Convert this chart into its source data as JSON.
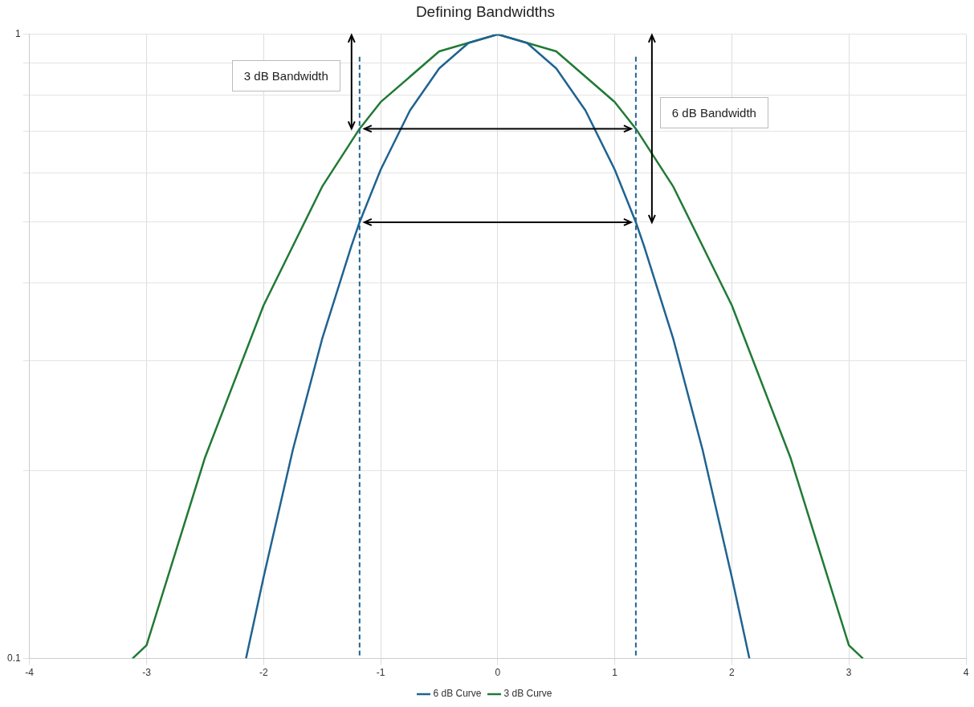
{
  "chart_data": {
    "type": "line",
    "title": "Defining Bandwidths",
    "xlim": [
      -4,
      4
    ],
    "xticks": [
      -4,
      -3,
      -2,
      -1,
      0,
      1,
      2,
      3,
      4
    ],
    "ylim": [
      0.1,
      1
    ],
    "log": true,
    "yticks": [
      0.1,
      {
        "value": 0.2,
        "label": null
      },
      {
        "value": 0.3,
        "label": null
      },
      {
        "value": 0.4,
        "label": null
      },
      {
        "value": 0.5,
        "label": null
      },
      {
        "value": 0.6,
        "label": null
      },
      {
        "value": 0.7,
        "label": null
      },
      {
        "value": 0.8,
        "label": null
      },
      {
        "value": 0.9,
        "label": null
      },
      1
    ],
    "grid": true,
    "legend": "bottom",
    "marker": "none",
    "series": [
      {
        "name": "6 dB Curve",
        "color": "#1f6391",
        "x": [
          -2.15,
          -2,
          -1.75,
          -1.5,
          -1.25,
          -1.18,
          -1,
          -0.75,
          -0.5,
          -0.25,
          0,
          0.25,
          0.5,
          0.75,
          1,
          1.18,
          1.25,
          1.5,
          1.75,
          2,
          2.15
        ],
        "values": [
          0.1,
          0.135,
          0.216,
          0.325,
          0.458,
          0.5,
          0.607,
          0.755,
          0.882,
          0.969,
          1,
          0.969,
          0.882,
          0.755,
          0.607,
          0.5,
          0.458,
          0.325,
          0.216,
          0.135,
          0.1
        ]
      },
      {
        "name": "3 dB Curve",
        "color": "#217a35",
        "x": [
          -3.12,
          -3,
          -2.5,
          -2,
          -1.5,
          -1.18,
          -1,
          -0.5,
          0,
          0.5,
          1,
          1.18,
          1.5,
          2,
          2.5,
          3,
          3.12
        ],
        "values": [
          0.1,
          0.105,
          0.21,
          0.368,
          0.57,
          0.706,
          0.779,
          0.939,
          1,
          0.939,
          0.779,
          0.706,
          0.57,
          0.368,
          0.21,
          0.105,
          0.1
        ]
      }
    ],
    "ref_lines": [
      {
        "axis": "x",
        "value": -1.18,
        "color": "#1f6391",
        "line_style": "dashed"
      },
      {
        "axis": "x",
        "value": 1.18,
        "color": "#1f6391",
        "line_style": "dashed"
      }
    ],
    "annotations": [
      "3 dB Bandwidth",
      "6 dB Bandwidth"
    ]
  }
}
